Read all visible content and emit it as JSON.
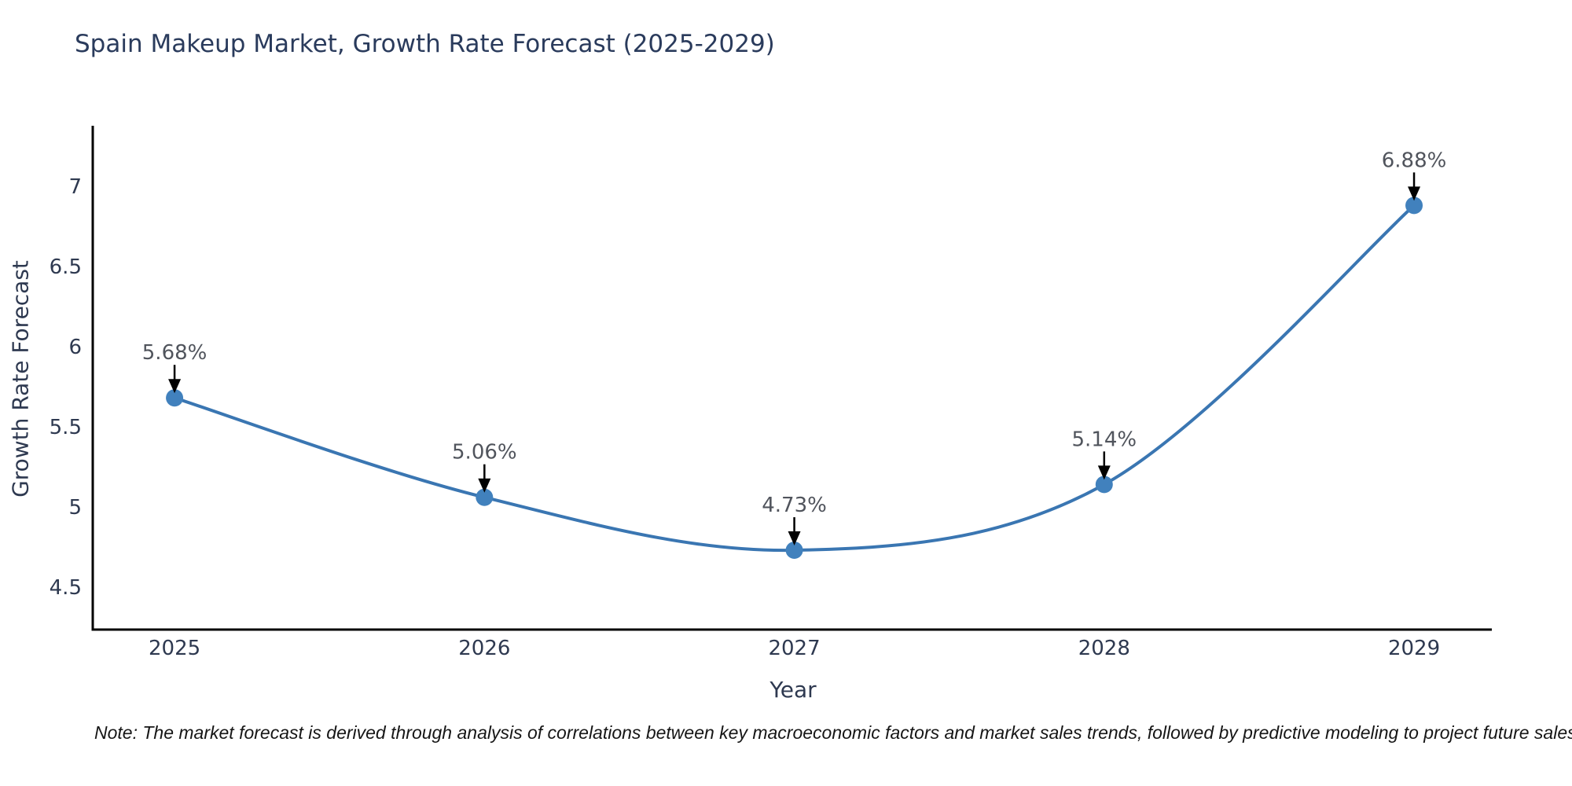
{
  "figure": {
    "background": "#ffffff",
    "title": "Spain Makeup Market, Growth Rate Forecast (2025-2029)",
    "xlabel": "Year",
    "ylabel": "Growth Rate Forecast",
    "note": "Note: The market forecast is derived through analysis of correlations between key macroeconomic factors and market sales trends, followed by predictive modeling to project future sales"
  },
  "chart_data": {
    "type": "line",
    "title": "Spain Makeup Market, Growth Rate Forecast (2025-2029)",
    "xlabel": "Year",
    "ylabel": "Growth Rate Forecast",
    "x": [
      2025,
      2026,
      2027,
      2028,
      2029
    ],
    "values": [
      5.68,
      5.06,
      4.73,
      5.14,
      6.88
    ],
    "point_labels": [
      "5.68%",
      "5.06%",
      "4.73%",
      "5.14%",
      "6.88%"
    ],
    "xticks": [
      "2025",
      "2026",
      "2027",
      "2028",
      "2029"
    ],
    "yticks": [
      4.5,
      5,
      5.5,
      6,
      6.5,
      7
    ],
    "xlim": [
      2024.736,
      2029.251
    ],
    "ylim": [
      4.235,
      7.377
    ],
    "grid": false,
    "legend": null,
    "smooth": true,
    "line_color": "#3a76b2",
    "marker_color": "#4181bd",
    "axis_color": "#000000",
    "arrow_color": "#000000",
    "annotation_note": "Note: The market forecast is derived through analysis of correlations between key macroeconomic factors and market sales trends, followed by predictive modeling to project future sales"
  }
}
